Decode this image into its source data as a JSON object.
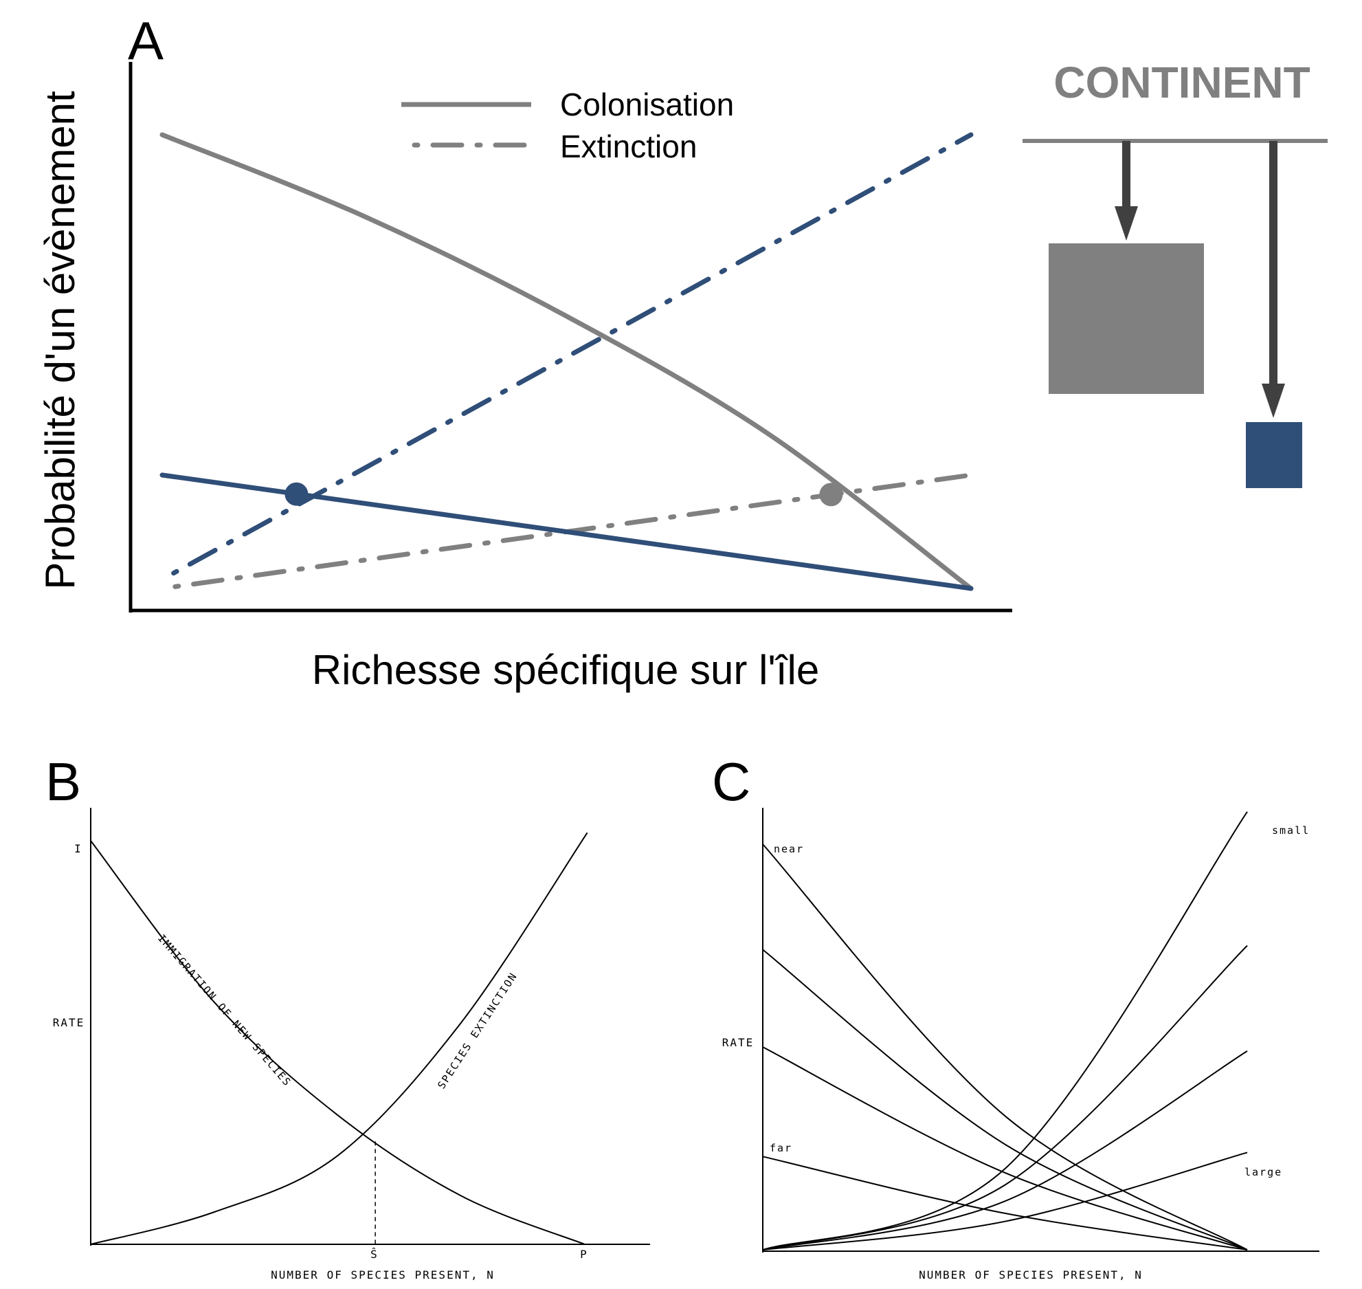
{
  "colors": {
    "grey": "#808080",
    "blue": "#2f4e78",
    "dark_arrow": "#404040",
    "black": "#000000"
  },
  "chart_data": [
    {
      "panel": "A",
      "type": "line",
      "title": "",
      "xlabel": "Richesse spécifique sur l'île",
      "ylabel": "Probabilité d'un évènement",
      "xlim": [
        0,
        1
      ],
      "ylim": [
        0,
        1
      ],
      "grid": false,
      "legend": {
        "placement": "top-center",
        "entries": [
          {
            "label": "Colonisation",
            "style": "solid",
            "color": "#808080"
          },
          {
            "label": "Extinction",
            "style": "dash-dot",
            "color": "#808080"
          }
        ]
      },
      "series": [
        {
          "kind": "colonisation",
          "color": "#808080",
          "style": "solid",
          "x": [
            0,
            0.25,
            0.5,
            0.75,
            1
          ],
          "y": [
            1,
            0.82,
            0.6,
            0.34,
            0
          ]
        },
        {
          "kind": "extinction",
          "color": "#808080",
          "style": "dash-dot",
          "x": [
            0,
            1
          ],
          "y": [
            0,
            0.25
          ]
        },
        {
          "kind": "colonisation",
          "color": "#2f4e78",
          "style": "solid",
          "x": [
            0,
            1
          ],
          "y": [
            0.25,
            0
          ]
        },
        {
          "kind": "extinction",
          "color": "#2f4e78",
          "style": "dash-dot",
          "x": [
            0,
            1
          ],
          "y": [
            0.02,
            1
          ]
        }
      ],
      "equilibria": [
        {
          "color": "#2f4e78",
          "x": 0.166,
          "y": 0.208
        },
        {
          "color": "#808080",
          "x": 0.827,
          "y": 0.207
        }
      ],
      "inset": {
        "label": "CONTINENT",
        "islands": [
          {
            "size": "large",
            "distance": "near",
            "color": "#808080"
          },
          {
            "size": "small",
            "distance": "far",
            "color": "#2f4e78"
          }
        ]
      }
    },
    {
      "panel": "B",
      "type": "line",
      "title": "",
      "xlabel": "NUMBER OF SPECIES PRESENT, N",
      "ylabel": "RATE",
      "x_ticks": [
        "Ŝ",
        "P"
      ],
      "y_ticks": [
        "I"
      ],
      "grid": false,
      "series": [
        {
          "label": "IMMIGRATION OF NEW SPECIES",
          "x": [
            0,
            0.25,
            0.5,
            0.75,
            1
          ],
          "y": [
            1,
            0.6,
            0.32,
            0.12,
            0
          ]
        },
        {
          "label": "SPECIES EXTINCTION",
          "x": [
            0,
            0.25,
            0.5,
            0.75,
            1.005
          ],
          "y": [
            0,
            0.08,
            0.22,
            0.55,
            1.02
          ]
        }
      ],
      "equilibrium": {
        "x": 0.576,
        "y": 0.255
      }
    },
    {
      "panel": "C",
      "type": "line",
      "title": "",
      "xlabel": "NUMBER OF SPECIES PRESENT, N",
      "ylabel": "RATE",
      "grid": false,
      "annotations": [
        "near",
        "far",
        "small",
        "large"
      ],
      "series": [
        {
          "group": "immigration",
          "x": [
            0,
            0.5,
            1
          ],
          "y": [
            1,
            0.33,
            0
          ]
        },
        {
          "group": "immigration",
          "x": [
            0,
            0.5,
            1
          ],
          "y": [
            0.74,
            0.26,
            0
          ]
        },
        {
          "group": "immigration",
          "x": [
            0,
            0.5,
            1
          ],
          "y": [
            0.5,
            0.19,
            0
          ]
        },
        {
          "group": "immigration",
          "x": [
            0,
            0.5,
            1
          ],
          "y": [
            0.23,
            0.09,
            0
          ]
        },
        {
          "group": "extinction",
          "x": [
            0,
            0.5,
            1
          ],
          "y": [
            0,
            0.2,
            1.08
          ]
        },
        {
          "group": "extinction",
          "x": [
            0,
            0.5,
            1
          ],
          "y": [
            0,
            0.16,
            0.75
          ]
        },
        {
          "group": "extinction",
          "x": [
            0,
            0.5,
            1
          ],
          "y": [
            0,
            0.12,
            0.49
          ]
        },
        {
          "group": "extinction",
          "x": [
            0,
            0.5,
            1
          ],
          "y": [
            0,
            0.07,
            0.24
          ]
        }
      ]
    }
  ]
}
